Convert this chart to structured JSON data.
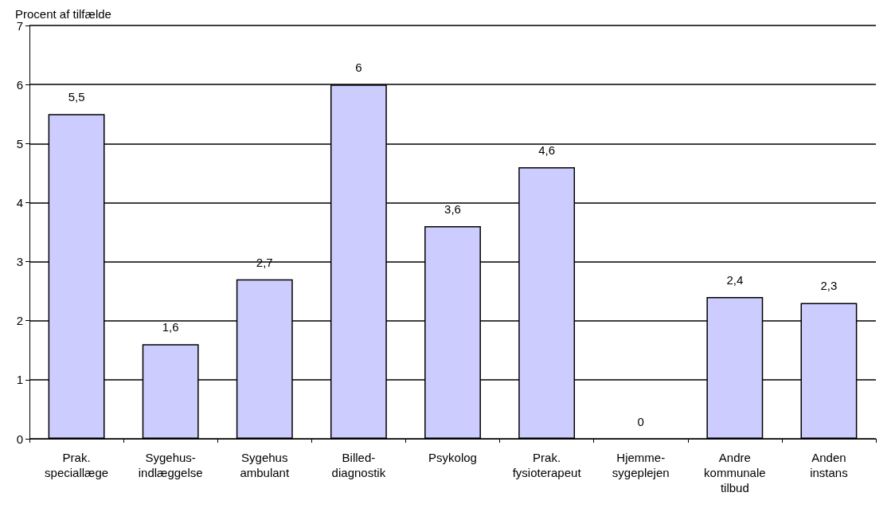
{
  "chart_data": {
    "type": "bar",
    "ylabel": "Procent af tilfælde",
    "categories": [
      "Prak.\nspeciallæge",
      "Sygehus-\nindlæggelse",
      "Sygehus\nambulant",
      "Billed-\ndiagnostik",
      "Psykolog",
      "Prak.\nfysioterapeut",
      "Hjemme-\nsygeplejen",
      "Andre\nkommunale\ntilbud",
      "Anden\ninstans"
    ],
    "values": [
      5.5,
      1.6,
      2.7,
      6,
      3.6,
      4.6,
      0,
      2.4,
      2.3
    ],
    "value_labels": [
      "5,5",
      "1,6",
      "2,7",
      "6",
      "3,6",
      "4,6",
      "0",
      "2,4",
      "2,3"
    ],
    "color": "#ccccff",
    "ylim": [
      0,
      7
    ],
    "yticks": [
      0,
      1,
      2,
      3,
      4,
      5,
      6,
      7
    ],
    "grid": "y"
  }
}
